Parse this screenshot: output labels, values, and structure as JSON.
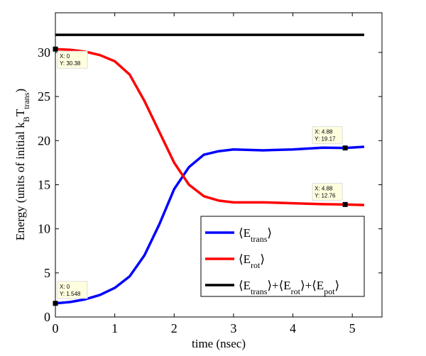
{
  "chart_data": {
    "type": "line",
    "title": "",
    "xlabel": "time (nsec)",
    "ylabel": "Energy (units of initial k_B T_trans)",
    "xlim": [
      0,
      5.5
    ],
    "ylim": [
      0,
      34.5
    ],
    "xticks": [
      "0",
      "1",
      "2",
      "3",
      "4",
      "5"
    ],
    "yticks": [
      "0",
      "5",
      "10",
      "15",
      "20",
      "25",
      "30"
    ],
    "legend_position": "bottom-right",
    "series": [
      {
        "name": "⟨E_trans⟩",
        "color": "#0000ff",
        "x": [
          0,
          0.25,
          0.5,
          0.75,
          1,
          1.25,
          1.5,
          1.75,
          2,
          2.25,
          2.5,
          2.75,
          3,
          3.5,
          4,
          4.5,
          4.88,
          5.2
        ],
        "y": [
          1.548,
          1.7,
          2.0,
          2.5,
          3.3,
          4.6,
          7,
          10.5,
          14.5,
          17,
          18.4,
          18.8,
          19.0,
          18.9,
          19.0,
          19.2,
          19.17,
          19.3
        ]
      },
      {
        "name": "⟨E_rot⟩",
        "color": "#ff0000",
        "x": [
          0,
          0.25,
          0.5,
          0.75,
          1,
          1.25,
          1.5,
          1.75,
          2,
          2.25,
          2.5,
          2.75,
          3,
          3.5,
          4,
          4.5,
          4.88,
          5.2
        ],
        "y": [
          30.38,
          30.3,
          30.1,
          29.7,
          29,
          27.5,
          24.5,
          21,
          17.5,
          15,
          13.7,
          13.2,
          13.0,
          13.0,
          12.9,
          12.8,
          12.76,
          12.7
        ]
      },
      {
        "name": "⟨E_trans⟩+⟨E_rot⟩+⟨E_pot⟩",
        "color": "#000000",
        "x": [
          0,
          5.2
        ],
        "y": [
          32,
          32
        ]
      }
    ],
    "datatips": [
      {
        "x_text": "X: 0",
        "y_text": "Y: 30.38",
        "x": 0,
        "y": 30.38
      },
      {
        "x_text": "X: 4.88",
        "y_text": "Y: 19.17",
        "x": 4.88,
        "y": 19.17
      },
      {
        "x_text": "X: 4.88",
        "y_text": "Y: 12.76",
        "x": 4.88,
        "y": 12.76
      },
      {
        "x_text": "X: 0",
        "y_text": "Y: 1.548",
        "x": 0,
        "y": 1.548
      }
    ]
  }
}
